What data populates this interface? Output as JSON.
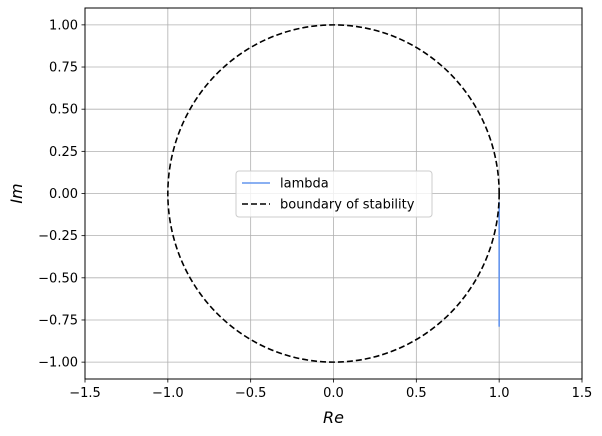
{
  "chart_data": {
    "type": "line",
    "xlabel": "Re",
    "ylabel": "Im",
    "xlim": [
      -1.5,
      1.5
    ],
    "ylim": [
      -1.1,
      1.1
    ],
    "grid": true,
    "legend_position": "center",
    "x_ticks": [
      -1.5,
      -1.0,
      -0.5,
      0.0,
      0.5,
      1.0,
      1.5
    ],
    "x_tick_labels": [
      "−1.5",
      "−1.0",
      "−0.5",
      "0.0",
      "0.5",
      "1.0",
      "1.5"
    ],
    "y_ticks": [
      1.0,
      0.75,
      0.5,
      0.25,
      0.0,
      -0.25,
      -0.5,
      -0.75,
      -1.0
    ],
    "y_tick_labels": [
      "1.00",
      "0.75",
      "0.50",
      "0.25",
      "0.00",
      "−0.25",
      "−0.50",
      "−0.75",
      "−1.00"
    ],
    "series": [
      {
        "name": "lambda",
        "color": "#6495ed",
        "style": "solid",
        "x": [
          1.0,
          1.0
        ],
        "y": [
          -0.05,
          -0.79
        ]
      },
      {
        "name": "boundary of stability",
        "color": "#000000",
        "style": "dashed",
        "shape": "unit circle",
        "center": [
          0,
          0
        ],
        "radius": 1.0
      }
    ]
  }
}
